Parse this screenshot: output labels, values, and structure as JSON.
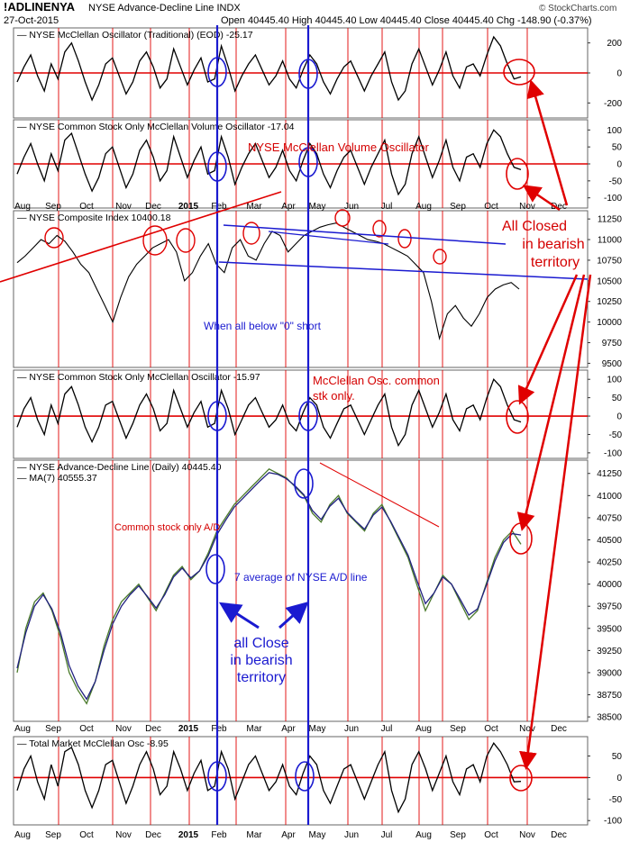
{
  "header": {
    "symbol": "!ADLINENYA",
    "description": "NYSE Advance-Decline Line INDX",
    "date": "27-Oct-2015",
    "ohlc": "Open 40445.40  High 40445.40  Low 40445.40  Close 40445.40  Chg -148.90 (-0.37%)",
    "brand": "© StockCharts.com"
  },
  "x_axis": {
    "labels": [
      "Aug",
      "Sep",
      "Oct",
      "Nov",
      "Dec",
      "2015",
      "Feb",
      "Mar",
      "Apr",
      "May",
      "Jun",
      "Jul",
      "Aug",
      "Sep",
      "Oct",
      "Nov",
      "Dec"
    ]
  },
  "colors": {
    "red": "#e00000",
    "blue": "#1a1ad0",
    "green_line": "#4a7a2a",
    "navy_line": "#202080",
    "price": "#000000"
  },
  "chart_data": [
    {
      "type": "line",
      "title": "NYSE McClellan Oscillator (Traditional) (EOD) -25.17",
      "ylim": [
        -300,
        300
      ],
      "yticks": [
        "200",
        "0",
        "-200"
      ],
      "yticks_values": [
        200,
        0,
        -200
      ],
      "reference_line": 0,
      "series": [
        {
          "values": [
            -60,
            40,
            120,
            -20,
            -120,
            60,
            -40,
            140,
            200,
            80,
            -60,
            -180,
            -80,
            60,
            100,
            -20,
            -140,
            -60,
            80,
            140,
            40,
            -100,
            -40,
            160,
            40,
            -80,
            20,
            100,
            -60,
            -40,
            180,
            40,
            -120,
            -20,
            60,
            120,
            20,
            -80,
            -20,
            80,
            -40,
            -100,
            20,
            120,
            60,
            -60,
            -140,
            -40,
            40,
            80,
            -20,
            -120,
            -20,
            60,
            140,
            -60,
            -180,
            -120,
            60,
            160,
            40,
            -80,
            20,
            140,
            -20,
            -100,
            40,
            60,
            -20,
            120,
            240,
            180,
            60,
            -40,
            -25
          ]
        }
      ]
    },
    {
      "type": "line",
      "title": "NYSE Common Stock Only McClellan Volume Oscillator -17.04",
      "ylim": [
        -130,
        130
      ],
      "yticks": [
        "100",
        "50",
        "0",
        "-50",
        "-100"
      ],
      "yticks_values": [
        100,
        50,
        0,
        -50,
        -100
      ],
      "reference_line": 0,
      "annotation": "NYSE McClellan Volume Oscillator",
      "series": [
        {
          "values": [
            -30,
            20,
            60,
            0,
            -50,
            30,
            -20,
            70,
            90,
            30,
            -30,
            -80,
            -40,
            30,
            50,
            -10,
            -70,
            -30,
            40,
            70,
            20,
            -50,
            -20,
            80,
            20,
            -40,
            10,
            50,
            -30,
            -20,
            80,
            20,
            -60,
            -10,
            30,
            60,
            10,
            -40,
            -10,
            40,
            -20,
            -50,
            10,
            60,
            30,
            -30,
            -70,
            -20,
            20,
            40,
            -10,
            -60,
            -10,
            30,
            70,
            -30,
            -90,
            -60,
            30,
            80,
            20,
            -40,
            10,
            70,
            -10,
            -50,
            20,
            30,
            -10,
            60,
            100,
            80,
            30,
            -10,
            -17
          ]
        }
      ]
    },
    {
      "type": "line",
      "title": "NYSE Composite Index 10400.18",
      "ylim": [
        9450,
        11350
      ],
      "yticks": [
        "11250",
        "11000",
        "10750",
        "10500",
        "10250",
        "10000",
        "9750",
        "9500"
      ],
      "yticks_values": [
        11250,
        11000,
        10750,
        10500,
        10250,
        10000,
        9750,
        9500
      ],
      "annotations": [
        "When all below \"0\" short",
        "All Closed",
        "in bearish",
        "territory"
      ],
      "series": [
        {
          "values": [
            10720,
            10800,
            10900,
            11000,
            10950,
            11050,
            10980,
            10850,
            10700,
            10600,
            10400,
            10200,
            10000,
            10300,
            10550,
            10700,
            10800,
            10900,
            10950,
            11000,
            10850,
            10500,
            10600,
            10800,
            10950,
            10700,
            10600,
            10900,
            11000,
            10800,
            10750,
            10950,
            11100,
            11050,
            10850,
            10950,
            11050,
            11100,
            11150,
            11180,
            11200,
            11150,
            11100,
            11050,
            11000,
            10980,
            10950,
            10900,
            10850,
            10800,
            10700,
            10600,
            10250,
            9800,
            10100,
            10200,
            10050,
            9950,
            10100,
            10300,
            10400,
            10450,
            10480,
            10400
          ]
        }
      ]
    },
    {
      "type": "line",
      "title": "NYSE Common Stock Only McClellan Oscillator -15.97",
      "ylim": [
        -115,
        125
      ],
      "yticks": [
        "100",
        "50",
        "0",
        "-50",
        "-100"
      ],
      "yticks_values": [
        100,
        50,
        0,
        -50,
        -100
      ],
      "reference_line": 0,
      "annotations": [
        "McClellan Osc. common",
        "stk only."
      ],
      "series": [
        {
          "values": [
            -30,
            20,
            50,
            -10,
            -50,
            30,
            -20,
            60,
            80,
            30,
            -30,
            -70,
            -30,
            30,
            40,
            -10,
            -60,
            -20,
            30,
            60,
            20,
            -40,
            -20,
            70,
            20,
            -30,
            10,
            40,
            -30,
            -20,
            70,
            20,
            -50,
            -10,
            30,
            50,
            10,
            -30,
            -10,
            30,
            -20,
            -40,
            10,
            50,
            30,
            -30,
            -60,
            -20,
            20,
            30,
            -10,
            -50,
            -10,
            30,
            60,
            -30,
            -80,
            -50,
            30,
            70,
            20,
            -30,
            10,
            60,
            -10,
            -40,
            20,
            30,
            -10,
            50,
            100,
            80,
            30,
            -10,
            -16
          ]
        }
      ]
    },
    {
      "type": "line",
      "title": "NYSE Advance-Decline Line (Daily) 40445.40",
      "legend": "MA(7) 40555.37",
      "ylim": [
        38450,
        41400
      ],
      "yticks": [
        "41250",
        "41000",
        "40750",
        "40500",
        "40250",
        "40000",
        "39750",
        "39500",
        "39250",
        "39000",
        "38750",
        "38500"
      ],
      "yticks_values": [
        41250,
        41000,
        40750,
        40500,
        40250,
        40000,
        39750,
        39500,
        39250,
        39000,
        38750,
        38500
      ],
      "annotations": [
        "Common stock only A/D",
        "7 average of NYSE A/D line",
        "all Close",
        "in bearish",
        "territory"
      ],
      "series": [
        {
          "values": [
            39000,
            39500,
            39800,
            39900,
            39700,
            39400,
            39000,
            38800,
            38650,
            38900,
            39300,
            39600,
            39800,
            39900,
            40000,
            39850,
            39700,
            39900,
            40100,
            40200,
            40050,
            40150,
            40350,
            40600,
            40750,
            40900,
            41000,
            41100,
            41200,
            41300,
            41250,
            41200,
            41100,
            41000,
            40800,
            40700,
            40900,
            41000,
            40800,
            40700,
            40600,
            40800,
            40900,
            40700,
            40500,
            40300,
            40000,
            39700,
            39900,
            40100,
            40000,
            39800,
            39600,
            39700,
            40000,
            40300,
            40500,
            40600,
            40450
          ]
        },
        {
          "values": [
            39050,
            39450,
            39750,
            39880,
            39720,
            39450,
            39080,
            38850,
            38700,
            38900,
            39250,
            39550,
            39750,
            39880,
            39980,
            39860,
            39730,
            39880,
            40080,
            40180,
            40070,
            40150,
            40320,
            40560,
            40720,
            40870,
            40970,
            41070,
            41170,
            41260,
            41240,
            41190,
            41110,
            41010,
            40830,
            40730,
            40880,
            40970,
            40810,
            40710,
            40620,
            40780,
            40870,
            40710,
            40520,
            40330,
            40050,
            39780,
            39900,
            40080,
            40000,
            39830,
            39650,
            39720,
            39980,
            40260,
            40470,
            40570,
            40555
          ]
        }
      ]
    },
    {
      "type": "line",
      "title": "Total Market McClellan Osc -8.95",
      "ylim": [
        -110,
        95
      ],
      "yticks": [
        "50",
        "0",
        "-50",
        "-100"
      ],
      "yticks_values": [
        50,
        0,
        -50,
        -100
      ],
      "reference_line": 0,
      "series": [
        {
          "values": [
            -30,
            20,
            50,
            -10,
            -50,
            30,
            -20,
            60,
            70,
            30,
            -30,
            -70,
            -30,
            30,
            40,
            -10,
            -60,
            -20,
            30,
            60,
            20,
            -40,
            -20,
            60,
            20,
            -30,
            10,
            40,
            -30,
            -20,
            60,
            20,
            -50,
            -10,
            30,
            50,
            10,
            -30,
            -10,
            30,
            -20,
            -40,
            10,
            50,
            30,
            -30,
            -60,
            -20,
            20,
            30,
            -10,
            -50,
            -10,
            30,
            60,
            -30,
            -80,
            -50,
            30,
            60,
            20,
            -30,
            10,
            50,
            -10,
            -40,
            20,
            30,
            -10,
            50,
            80,
            60,
            30,
            -10,
            -9
          ]
        }
      ]
    }
  ]
}
